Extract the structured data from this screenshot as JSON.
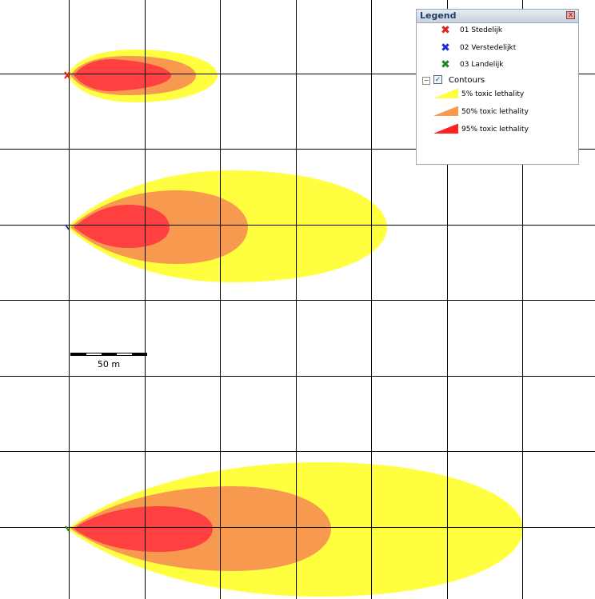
{
  "map": {
    "background": "#ffffff",
    "grid_color": "#000000",
    "contour_colors": {
      "lethality_5": "#ffff40",
      "lethality_50": "#f79a50",
      "lethality_95": "#ff4040"
    }
  },
  "scale_bar": {
    "label": "50 m"
  },
  "legend": {
    "title": "Legend",
    "close_symbol": "x",
    "scenarios": [
      {
        "label": "01 Stedelijk",
        "color": "#e02020",
        "icon": "cross-icon"
      },
      {
        "label": "02 Verstedelijkt",
        "color": "#1e2fd8",
        "icon": "cross-icon"
      },
      {
        "label": "03 Landelijk",
        "color": "#1a8a20",
        "icon": "cross-icon"
      }
    ],
    "contours_group": {
      "label": "Contours",
      "expand_symbol": "−",
      "checked_symbol": "✓"
    },
    "contours": [
      {
        "label": "5% toxic lethality",
        "color": "#ffff40"
      },
      {
        "label": "50% toxic lethality",
        "color": "#f79a50"
      },
      {
        "label": "95% toxic lethality",
        "color": "#ff2020"
      }
    ]
  }
}
